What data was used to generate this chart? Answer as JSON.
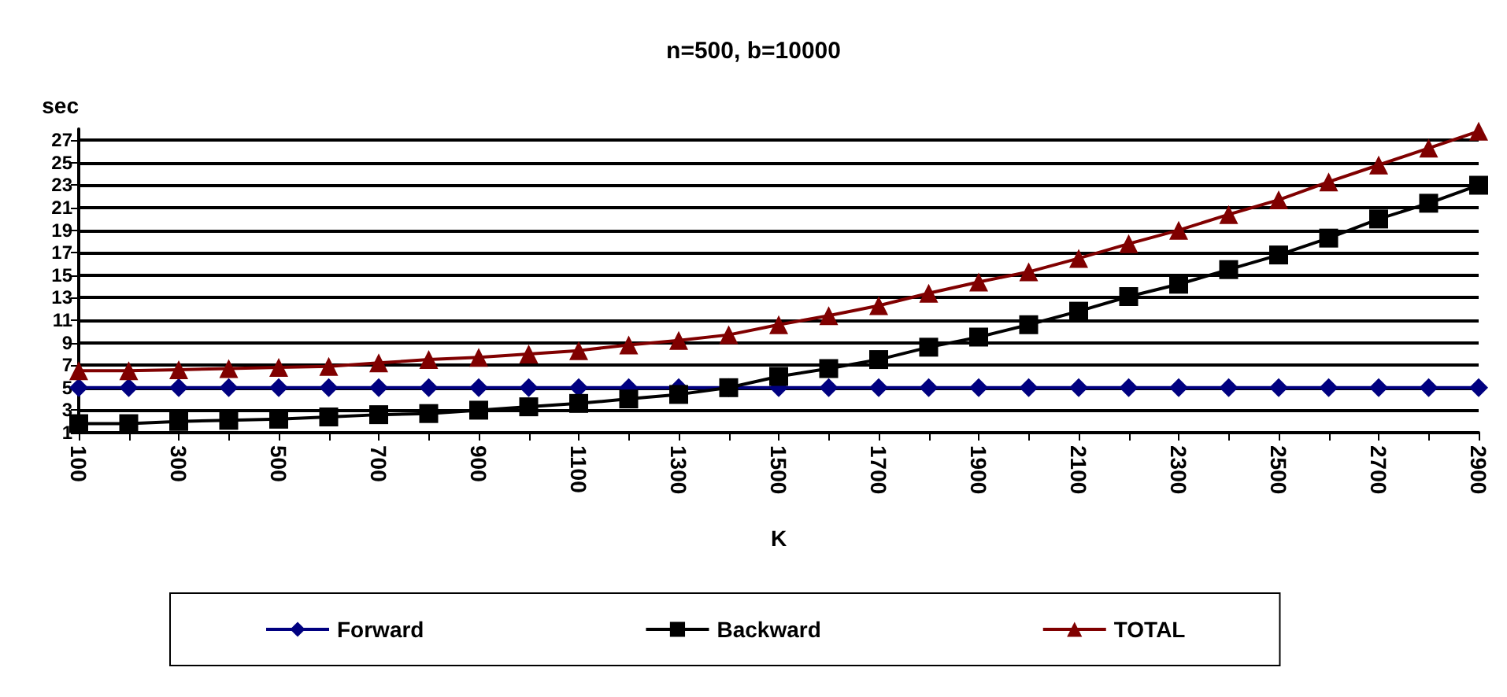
{
  "chart_data": {
    "type": "line",
    "title": "n=500, b=10000",
    "xlabel": "K",
    "ylabel": "sec",
    "categories": [
      "100",
      null,
      "300",
      null,
      "500",
      null,
      "700",
      null,
      "900",
      null,
      "1100",
      null,
      "1300",
      null,
      "1500",
      null,
      "1700",
      null,
      "1900",
      null,
      "2100",
      null,
      "2300",
      null,
      "2500",
      null,
      "2700",
      null,
      "2900"
    ],
    "series": [
      {
        "name": "Forward",
        "color": "#000080",
        "marker": "diamond",
        "values": [
          5,
          5,
          5,
          5,
          5,
          5,
          5,
          5,
          5,
          5,
          5,
          5,
          5,
          5,
          5,
          5,
          5,
          5,
          5,
          5,
          5,
          5,
          5,
          5,
          5,
          5,
          5,
          5,
          5
        ]
      },
      {
        "name": "Backward",
        "color": "#000000",
        "marker": "square",
        "values": [
          1.8,
          1.8,
          2.0,
          2.1,
          2.2,
          2.4,
          2.6,
          2.7,
          3.0,
          3.3,
          3.6,
          4.0,
          4.4,
          5.0,
          6.0,
          6.7,
          7.5,
          8.6,
          9.5,
          10.6,
          11.8,
          13.1,
          14.2,
          15.5,
          16.8,
          18.3,
          20.0,
          21.4,
          23.0
        ]
      },
      {
        "name": "TOTAL",
        "color": "#800000",
        "marker": "triangle",
        "values": [
          6.5,
          6.5,
          6.6,
          6.7,
          6.8,
          6.9,
          7.2,
          7.5,
          7.7,
          8.0,
          8.3,
          8.8,
          9.2,
          9.7,
          10.6,
          11.4,
          12.3,
          13.4,
          14.4,
          15.3,
          16.5,
          17.8,
          19.0,
          20.4,
          21.7,
          23.3,
          24.8,
          26.3,
          27.8
        ]
      }
    ],
    "ylim": [
      1,
      28
    ],
    "yticks": [
      1,
      3,
      5,
      7,
      9,
      11,
      13,
      15,
      17,
      19,
      21,
      23,
      25,
      27
    ],
    "grid": "y",
    "legend": "bottom"
  }
}
